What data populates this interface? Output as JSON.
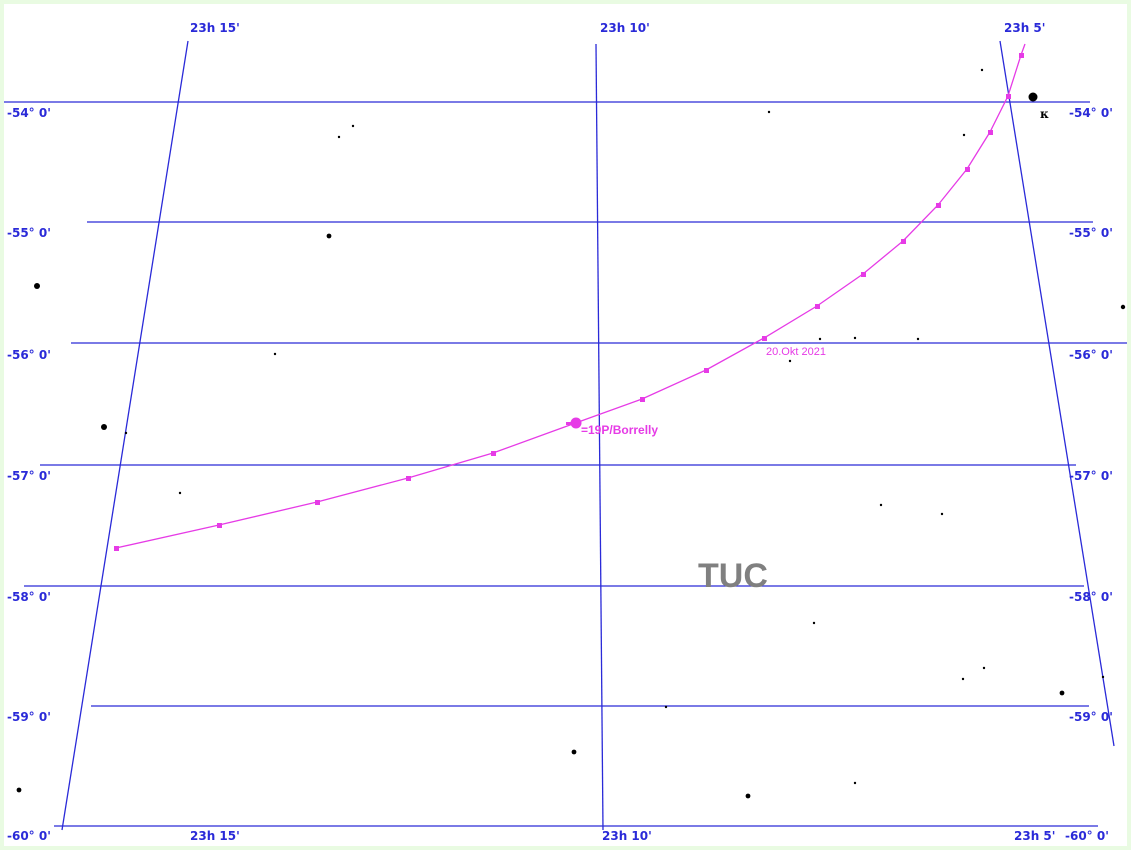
{
  "colors": {
    "background_frame": "#e9fbe2",
    "chart_background": "#ffffff",
    "grid_lines": "#2a2ad8",
    "labels": "#2a2ad8",
    "comet_path": "#e63be6",
    "constellation_label": "#808080",
    "stars": "#000000"
  },
  "ra_labels_top": [
    "23h 15'",
    "23h 10'",
    "23h 5'"
  ],
  "ra_labels_bottom": [
    "23h 15'",
    "23h 10'",
    "23h 5'"
  ],
  "dec_labels_left": [
    "-54° 0'",
    "-55° 0'",
    "-56° 0'",
    "-57° 0'",
    "-58° 0'",
    "-59° 0'",
    "-60° 0'"
  ],
  "dec_labels_right": [
    "-54° 0'",
    "-55° 0'",
    "-56° 0'",
    "-57° 0'",
    "-58° 0'",
    "-59° 0'",
    "-60° 0'"
  ],
  "constellation": "TUC",
  "comet": {
    "name": "=19P/Borrelly",
    "date_label": "20.Okt 2021"
  },
  "star_label": "κ",
  "icons": {
    "comet_marker": "comet-head-icon",
    "star_marker": "star-dot-icon"
  }
}
